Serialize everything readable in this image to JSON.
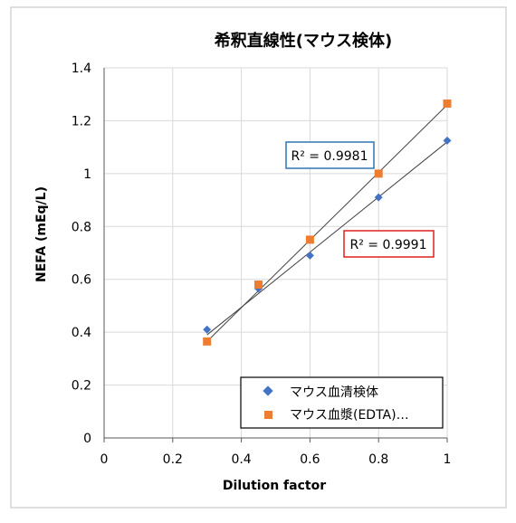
{
  "chart_data": {
    "type": "scatter",
    "title": "希釈直線性(マウス検体)",
    "xlabel": "Dilution factor",
    "ylabel": "NEFA (mEq/L)",
    "xlim": [
      0,
      1
    ],
    "ylim": [
      0,
      1.4
    ],
    "x_ticks": [
      "0",
      "0.2",
      "0.4",
      "0.6",
      "0.8",
      "1"
    ],
    "y_ticks": [
      "0",
      "0.2",
      "0.4",
      "0.6",
      "0.8",
      "1",
      "1.2",
      "1.4"
    ],
    "grid": true,
    "legend_position": "bottom-right",
    "series": [
      {
        "name": "マウス血清検体",
        "marker": "diamond",
        "color": "#4472C4",
        "x": [
          0.3,
          0.45,
          0.6,
          0.8,
          1.0
        ],
        "y": [
          0.41,
          0.565,
          0.69,
          0.91,
          1.125
        ],
        "trendline": {
          "x": [
            0.3,
            1.0
          ],
          "y": [
            0.39,
            1.12
          ]
        }
      },
      {
        "name": "マウス血漿(EDTA)…",
        "marker": "square",
        "color": "#ED7D31",
        "x": [
          0.3,
          0.45,
          0.6,
          0.8,
          1.0
        ],
        "y": [
          0.365,
          0.58,
          0.75,
          1.0,
          1.265
        ],
        "trendline": {
          "x": [
            0.3,
            1.0
          ],
          "y": [
            0.365,
            1.26
          ]
        }
      }
    ],
    "annotations": [
      {
        "text": "R² = 0.9981",
        "border_color": "#2E75B6"
      },
      {
        "text": "R² = 0.9991",
        "border_color": "#E0201B"
      }
    ]
  }
}
